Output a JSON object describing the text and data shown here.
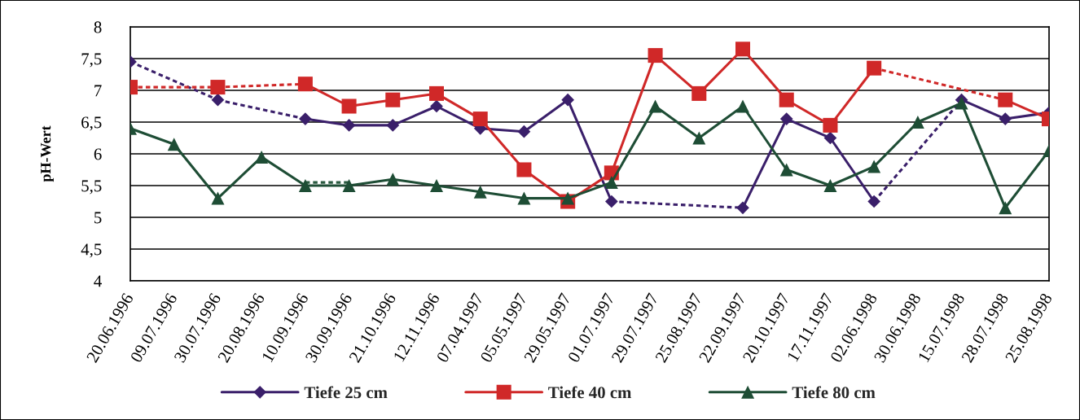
{
  "chart_data": {
    "type": "line",
    "ylabel": "pH-Wert",
    "categories": [
      "20.06.1996",
      "09.07.1996",
      "30.07.1996",
      "20.08.1996",
      "10.09.1996",
      "30.09.1996",
      "21.10.1996",
      "12.11.1996",
      "07.04.1997",
      "05.05.1997",
      "29.05.1997",
      "01.07.1997",
      "29.07.1997",
      "25.08.1997",
      "22.09.1997",
      "20.10.1997",
      "17.11.1997",
      "02.06.1998",
      "30.06.1998",
      "15.07.1998",
      "28.07.1998",
      "25.08.1998"
    ],
    "ylim": [
      4,
      8
    ],
    "yticks": [
      4,
      {
        "value": 4.5,
        "label": "4,5"
      },
      5,
      {
        "value": 5.5,
        "label": "5,5"
      },
      6,
      {
        "value": 6.5,
        "label": "6,5"
      },
      7,
      {
        "value": 7.5,
        "label": "7,5"
      },
      8
    ],
    "grid": "y",
    "legend": "bottom",
    "line_style": "solid",
    "series": [
      {
        "color": "#2a5a40",
        "marker": "none",
        "line_style": "dotted",
        "values": [
          null,
          null,
          null,
          null,
          5.55,
          5.55,
          null,
          null,
          null,
          null,
          null,
          null,
          null,
          null,
          null,
          null,
          null,
          null,
          null,
          null,
          null,
          null
        ]
      },
      {
        "name": "Tiefe 25 cm",
        "color": "#3a1f6a",
        "marker": "diamond",
        "values": [
          7.45,
          null,
          6.85,
          null,
          6.55,
          6.45,
          6.45,
          6.75,
          6.4,
          6.35,
          6.85,
          5.25,
          null,
          null,
          5.15,
          6.55,
          6.25,
          5.25,
          null,
          6.85,
          6.55,
          6.65
        ]
      },
      {
        "name": "Tiefe 40 cm",
        "color": "#d02828",
        "marker": "square",
        "values": [
          7.05,
          null,
          7.05,
          null,
          7.1,
          6.75,
          6.85,
          6.95,
          6.55,
          5.75,
          5.25,
          5.7,
          7.55,
          6.95,
          7.65,
          6.85,
          6.45,
          7.35,
          null,
          null,
          6.85,
          6.55
        ]
      },
      {
        "name": "Tiefe 80 cm",
        "color": "#1e4d35",
        "marker": "triangle",
        "values": [
          6.4,
          6.15,
          5.3,
          5.95,
          5.5,
          5.5,
          5.6,
          5.5,
          5.4,
          5.3,
          5.3,
          5.55,
          6.75,
          6.25,
          6.75,
          5.75,
          5.5,
          5.8,
          6.5,
          6.8,
          5.15,
          6.05
        ]
      }
    ]
  }
}
